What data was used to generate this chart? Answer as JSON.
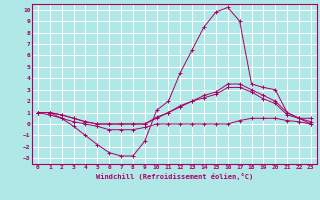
{
  "xlabel": "Windchill (Refroidissement éolien,°C)",
  "background_color": "#b0e8e8",
  "grid_color": "#ffffff",
  "line_color": "#aa0066",
  "xlim": [
    -0.5,
    23.5
  ],
  "ylim": [
    -3.5,
    10.5
  ],
  "yticks": [
    10,
    9,
    8,
    7,
    6,
    5,
    4,
    3,
    2,
    1,
    0,
    -1,
    -2,
    -3
  ],
  "xticks": [
    0,
    1,
    2,
    3,
    4,
    5,
    6,
    7,
    8,
    9,
    10,
    11,
    12,
    13,
    14,
    15,
    16,
    17,
    18,
    19,
    20,
    21,
    22,
    23
  ],
  "line1_x": [
    0,
    1,
    2,
    3,
    4,
    5,
    6,
    7,
    8,
    9,
    10,
    11,
    12,
    13,
    14,
    15,
    16,
    17,
    18,
    19,
    20,
    21,
    22,
    23
  ],
  "line1_y": [
    1.0,
    1.0,
    0.5,
    -0.2,
    -1.0,
    -1.8,
    -2.5,
    -2.8,
    -2.8,
    -1.5,
    1.2,
    2.0,
    4.5,
    6.5,
    8.5,
    9.8,
    10.2,
    9.0,
    3.5,
    3.2,
    3.0,
    1.0,
    0.5,
    0.5
  ],
  "line2_x": [
    0,
    1,
    2,
    3,
    4,
    5,
    6,
    7,
    8,
    9,
    10,
    11,
    12,
    13,
    14,
    15,
    16,
    17,
    18,
    19,
    20,
    21,
    22,
    23
  ],
  "line2_y": [
    1.0,
    1.0,
    0.8,
    0.5,
    0.2,
    0.0,
    0.0,
    0.0,
    0.0,
    0.0,
    0.5,
    1.0,
    1.5,
    2.0,
    2.5,
    2.8,
    3.5,
    3.5,
    3.0,
    2.5,
    2.0,
    1.0,
    0.5,
    0.2
  ],
  "line3_x": [
    0,
    1,
    2,
    3,
    4,
    5,
    6,
    7,
    8,
    9,
    10,
    11,
    12,
    13,
    14,
    15,
    16,
    17,
    18,
    19,
    20,
    21,
    22,
    23
  ],
  "line3_y": [
    1.0,
    1.0,
    0.8,
    0.5,
    0.2,
    0.0,
    0.0,
    0.0,
    0.0,
    0.0,
    0.6,
    1.0,
    1.6,
    2.0,
    2.3,
    2.6,
    3.2,
    3.2,
    2.8,
    2.2,
    1.8,
    0.8,
    0.5,
    0.0
  ],
  "line4_x": [
    0,
    1,
    2,
    3,
    4,
    5,
    6,
    7,
    8,
    9,
    10,
    11,
    12,
    13,
    14,
    15,
    16,
    17,
    18,
    19,
    20,
    21,
    22,
    23
  ],
  "line4_y": [
    1.0,
    0.8,
    0.5,
    0.2,
    0.0,
    -0.2,
    -0.5,
    -0.5,
    -0.5,
    -0.3,
    0.0,
    0.0,
    0.0,
    0.0,
    0.0,
    0.0,
    0.0,
    0.3,
    0.5,
    0.5,
    0.5,
    0.3,
    0.2,
    0.0
  ]
}
